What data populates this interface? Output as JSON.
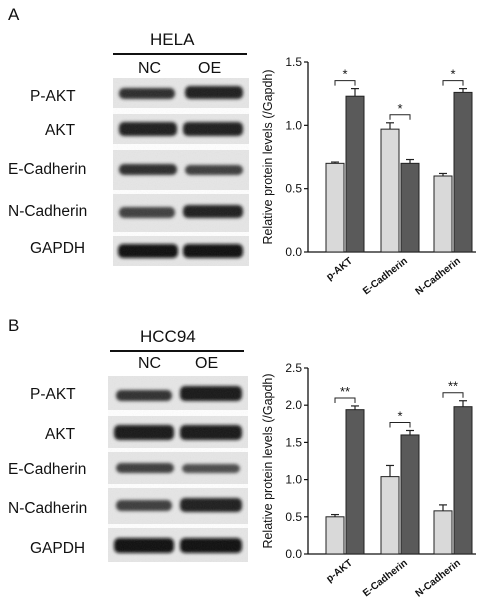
{
  "panels": [
    {
      "letter": "A",
      "cell_line": "HELA",
      "lanes": [
        "NC",
        "OE"
      ],
      "blot_rows": [
        "P-AKT",
        "AKT",
        "E-Cadherin",
        "N-Cadherin",
        "GAPDH"
      ]
    },
    {
      "letter": "B",
      "cell_line": "HCC94",
      "lanes": [
        "NC",
        "OE"
      ],
      "blot_rows": [
        "P-AKT",
        "AKT",
        "E-Cadherin",
        "N-Cadherin",
        "GAPDH"
      ]
    }
  ],
  "chart_data": [
    {
      "type": "bar",
      "ylabel": "Relative protein levels (/Gapdh)",
      "categories": [
        "p-AKT",
        "E-Cadherin",
        "N-Cadherin"
      ],
      "ylim": [
        0,
        1.5
      ],
      "yticks": [
        "0.0",
        "0.5",
        "1.0",
        "1.5"
      ],
      "series": [
        {
          "values": [
            0.7,
            0.97,
            0.6
          ],
          "errors": [
            0.01,
            0.05,
            0.02
          ],
          "color": "#d9d9d9"
        },
        {
          "values": [
            1.23,
            0.7,
            1.26
          ],
          "errors": [
            0.06,
            0.03,
            0.03
          ],
          "color": "#5a5a5a"
        }
      ],
      "significance": [
        "*",
        "*",
        "*"
      ]
    },
    {
      "type": "bar",
      "ylabel": "Relative protein levels (/Gapdh)",
      "categories": [
        "p-AKT",
        "E-Cadherin",
        "N-Cadherin"
      ],
      "ylim": [
        0,
        2.5
      ],
      "yticks": [
        "0.0",
        "0.5",
        "1.0",
        "1.5",
        "2.0",
        "2.5"
      ],
      "series": [
        {
          "values": [
            0.5,
            1.04,
            0.58
          ],
          "errors": [
            0.03,
            0.15,
            0.08
          ],
          "color": "#d9d9d9"
        },
        {
          "values": [
            1.94,
            1.6,
            1.98
          ],
          "errors": [
            0.05,
            0.06,
            0.08
          ],
          "color": "#5a5a5a"
        }
      ],
      "significance": [
        "**",
        "*",
        "**"
      ]
    }
  ]
}
